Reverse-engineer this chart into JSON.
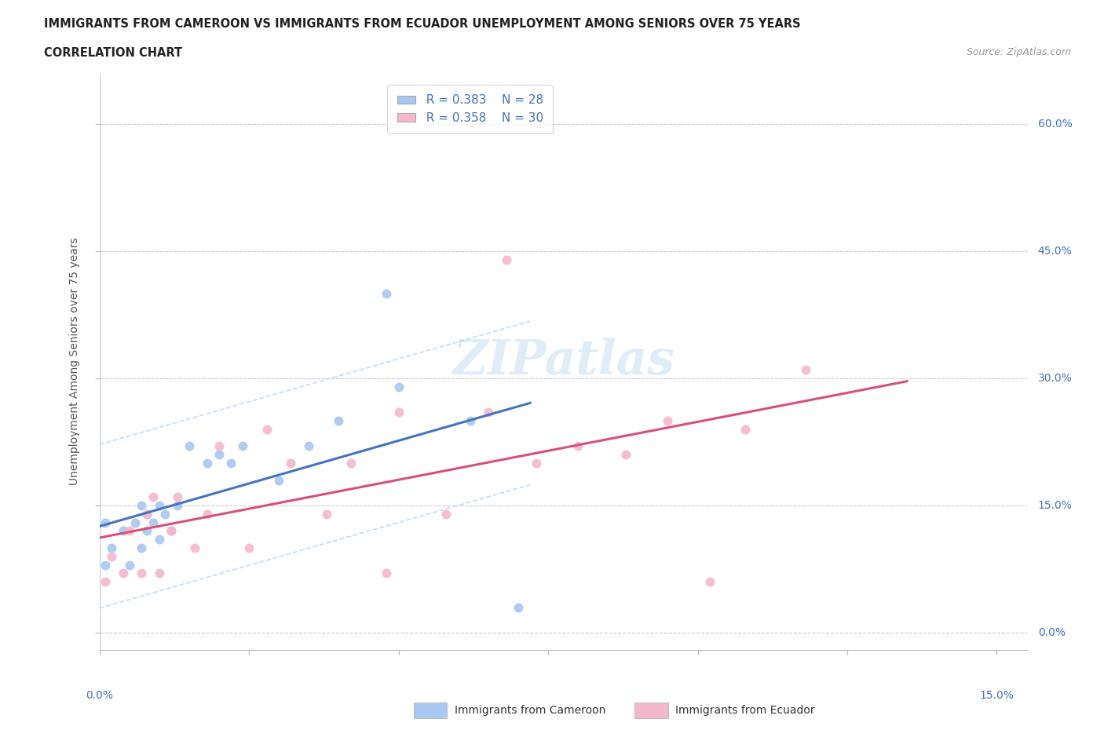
{
  "title_line1": "IMMIGRANTS FROM CAMEROON VS IMMIGRANTS FROM ECUADOR UNEMPLOYMENT AMONG SENIORS OVER 75 YEARS",
  "title_line2": "CORRELATION CHART",
  "source_text": "Source: ZipAtlas.com",
  "ylabel": "Unemployment Among Seniors over 75 years",
  "xlim": [
    0.0,
    0.155
  ],
  "ylim": [
    -0.02,
    0.66
  ],
  "ytick_values": [
    0.0,
    0.15,
    0.3,
    0.45,
    0.6
  ],
  "ytick_labels": [
    "0.0%",
    "15.0%",
    "30.0%",
    "45.0%",
    "60.0%"
  ],
  "xtick_values": [
    0.0,
    0.025,
    0.05,
    0.075,
    0.1,
    0.125,
    0.15
  ],
  "legend_r1": "R = 0.383",
  "legend_n1": "N = 28",
  "legend_r2": "R = 0.358",
  "legend_n2": "N = 30",
  "watermark": "ZIPatlas",
  "color_cameroon": "#a8c8f0",
  "color_ecuador": "#f4b8cc",
  "line_color_cameroon": "#4472c4",
  "line_color_ecuador": "#d94f7c",
  "ci_color_cameroon": "#c0d8f5",
  "cameroon_x": [
    0.001,
    0.001,
    0.002,
    0.004,
    0.005,
    0.006,
    0.007,
    0.007,
    0.008,
    0.008,
    0.009,
    0.01,
    0.01,
    0.011,
    0.012,
    0.013,
    0.015,
    0.018,
    0.02,
    0.022,
    0.024,
    0.03,
    0.035,
    0.04,
    0.048,
    0.05,
    0.062,
    0.07
  ],
  "cameroon_y": [
    0.08,
    0.13,
    0.1,
    0.12,
    0.08,
    0.13,
    0.1,
    0.15,
    0.12,
    0.14,
    0.13,
    0.11,
    0.15,
    0.14,
    0.12,
    0.15,
    0.22,
    0.2,
    0.21,
    0.2,
    0.22,
    0.18,
    0.22,
    0.25,
    0.4,
    0.29,
    0.25,
    0.03
  ],
  "ecuador_x": [
    0.001,
    0.002,
    0.004,
    0.005,
    0.007,
    0.008,
    0.009,
    0.01,
    0.012,
    0.013,
    0.016,
    0.018,
    0.02,
    0.025,
    0.028,
    0.032,
    0.038,
    0.042,
    0.048,
    0.05,
    0.058,
    0.065,
    0.068,
    0.073,
    0.08,
    0.088,
    0.095,
    0.102,
    0.108,
    0.118
  ],
  "ecuador_y": [
    0.06,
    0.09,
    0.07,
    0.12,
    0.07,
    0.14,
    0.16,
    0.07,
    0.12,
    0.16,
    0.1,
    0.14,
    0.22,
    0.1,
    0.24,
    0.2,
    0.14,
    0.2,
    0.07,
    0.26,
    0.14,
    0.26,
    0.44,
    0.2,
    0.22,
    0.21,
    0.25,
    0.06,
    0.24,
    0.31
  ]
}
